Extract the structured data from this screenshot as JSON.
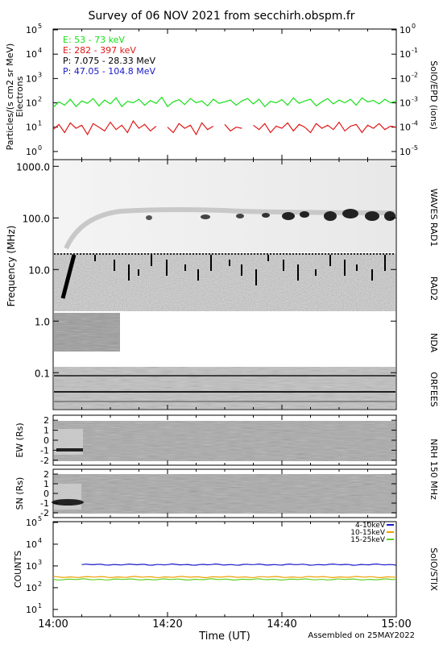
{
  "title": "Survey of 06 NOV 2021 from secchirh.obspm.fr",
  "footer": "Assembled on 25MAY2022",
  "colors": {
    "green": "#18e018",
    "red": "#e01818",
    "black": "#000000",
    "blue": "#1818c8",
    "orange": "#f0a000",
    "lime": "#60d020"
  },
  "chart_data": [
    {
      "type": "line",
      "panel": "SolO/EPD",
      "ylabel_line1": "Particles/(s cm2 sr MeV)",
      "ylabel_line2": "Electrons",
      "right_label": "SolO/EPD (ions)",
      "yscale": "log",
      "ylim": [
        0.5,
        100000
      ],
      "y_ticks": [
        {
          "b": "10",
          "e": "0",
          "v": 1
        },
        {
          "b": "10",
          "e": "1",
          "v": 10
        },
        {
          "b": "10",
          "e": "2",
          "v": 100
        },
        {
          "b": "10",
          "e": "3",
          "v": 1000
        },
        {
          "b": "10",
          "e": "4",
          "v": 10000
        },
        {
          "b": "10",
          "e": "5",
          "v": 100000
        }
      ],
      "y2_ticks": [
        {
          "b": "10",
          "e": "-5",
          "v": 1
        },
        {
          "b": "10",
          "e": "-4",
          "v": 10
        },
        {
          "b": "10",
          "e": "-3",
          "v": 100
        },
        {
          "b": "10",
          "e": "-2",
          "v": 1000
        },
        {
          "b": "10",
          "e": "-1",
          "v": 10000
        },
        {
          "b": "10",
          "e": "0",
          "v": 100000
        }
      ],
      "series": [
        {
          "name": "E: 53 - 73 keV",
          "color": "#18e018",
          "x": [
            0,
            1,
            2,
            3,
            4,
            5,
            6,
            7,
            8,
            9,
            10,
            11,
            12,
            13,
            14,
            15,
            16,
            17,
            18,
            19,
            20,
            21,
            22,
            23,
            24,
            25,
            26,
            27,
            28,
            29,
            30,
            31,
            32,
            33,
            34,
            35,
            36,
            37,
            38,
            39,
            40,
            41,
            42,
            43,
            44,
            45,
            46,
            47,
            48,
            49,
            50,
            51,
            52,
            53,
            54,
            55,
            56,
            57,
            58,
            59,
            60
          ],
          "y": [
            65,
            110,
            80,
            140,
            70,
            120,
            95,
            150,
            75,
            130,
            90,
            160,
            70,
            115,
            100,
            140,
            80,
            125,
            95,
            170,
            70,
            110,
            135,
            85,
            150,
            100,
            120,
            75,
            140,
            95,
            110,
            130,
            80,
            120,
            150,
            90,
            140,
            70,
            115,
            100,
            135,
            80,
            160,
            95,
            120,
            140,
            75,
            110,
            150,
            90,
            130,
            100,
            140,
            80,
            160,
            110,
            125,
            90,
            140,
            100,
            120
          ]
        },
        {
          "name": "E: 282 - 397 keV",
          "color": "#e01818",
          "x": [
            0,
            1,
            2,
            3,
            4,
            5,
            6,
            7,
            8,
            9,
            10,
            11,
            12,
            13,
            14,
            15,
            16,
            17,
            18,
            19,
            20,
            21,
            22,
            23,
            24,
            25,
            26,
            27,
            28,
            29,
            30,
            31,
            32,
            33,
            34,
            35,
            36,
            37,
            38,
            39,
            40,
            41,
            42,
            43,
            44,
            45,
            46,
            47,
            48,
            49,
            50,
            51,
            52,
            53,
            54,
            55,
            56,
            57,
            58,
            59,
            60
          ],
          "y": [
            8,
            13,
            6,
            15,
            9,
            12,
            5,
            14,
            10,
            7,
            16,
            8,
            12,
            6,
            18,
            9,
            13,
            7,
            11,
            null,
            10,
            6,
            14,
            9,
            12,
            5,
            15,
            8,
            11,
            null,
            13,
            7,
            10,
            9,
            null,
            12,
            8,
            14,
            6,
            11,
            9,
            15,
            7,
            13,
            10,
            6,
            14,
            9,
            12,
            8,
            16,
            7,
            11,
            13,
            6,
            12,
            9,
            14,
            8,
            11,
            10
          ]
        },
        {
          "name": "P: 7.075 - 28.33 MeV",
          "color": "#000000",
          "x": [],
          "y": []
        },
        {
          "name": "P: 47.05 - 104.8 MeV",
          "color": "#1818c8",
          "x": [],
          "y": []
        }
      ]
    },
    {
      "type": "heatmap",
      "panel": "WAVES / NDA / ORFEES",
      "ylabel": "Frequency (MHz)",
      "yscale": "log",
      "ylim": [
        0.02,
        1300
      ],
      "y_ticks": [
        "0.1",
        "1.0",
        "10.0",
        "100.0",
        "1000.0"
      ],
      "band_labels": [
        "WAVES RAD1",
        "RAD2",
        "NDA",
        "ORFEES"
      ]
    },
    {
      "type": "heatmap",
      "panel": "NRH 150 MHz EW",
      "ylabel": "EW (Rs)",
      "ylim": [
        -2.5,
        2.5
      ],
      "y_ticks": [
        "2",
        "1",
        "0",
        "-1",
        "-2"
      ],
      "right_label": "NRH 150 MHz"
    },
    {
      "type": "heatmap",
      "panel": "NRH 150 MHz SN",
      "ylabel": "SN (Rs)",
      "ylim": [
        -2.5,
        2.5
      ],
      "y_ticks": [
        "2",
        "1",
        "0",
        "-1",
        "-2"
      ]
    },
    {
      "type": "line",
      "panel": "SolO/STIX",
      "ylabel": "COUNTS",
      "right_label": "SolO/STIX",
      "yscale": "log",
      "ylim": [
        5,
        100000
      ],
      "y_ticks": [
        {
          "b": "10",
          "e": "1",
          "v": 10
        },
        {
          "b": "10",
          "e": "2",
          "v": 100
        },
        {
          "b": "10",
          "e": "3",
          "v": 1000
        },
        {
          "b": "10",
          "e": "4",
          "v": 10000
        },
        {
          "b": "10",
          "e": "5",
          "v": 100000
        }
      ],
      "xlabel": "Time (UT)",
      "x_ticks": [
        "14:00",
        "14:20",
        "14:40",
        "15:00"
      ],
      "xlim": [
        0,
        60
      ],
      "series": [
        {
          "name": "4-10keV",
          "color": "#1818c8",
          "x": [
            0,
            60
          ],
          "y": [
            1150,
            1150
          ],
          "start": 5
        },
        {
          "name": "10-15keV",
          "color": "#f0a000",
          "x": [
            0,
            60
          ],
          "y": [
            310,
            310
          ]
        },
        {
          "name": "15-25keV",
          "color": "#60d020",
          "x": [
            0,
            60
          ],
          "y": [
            240,
            240
          ]
        }
      ]
    }
  ]
}
